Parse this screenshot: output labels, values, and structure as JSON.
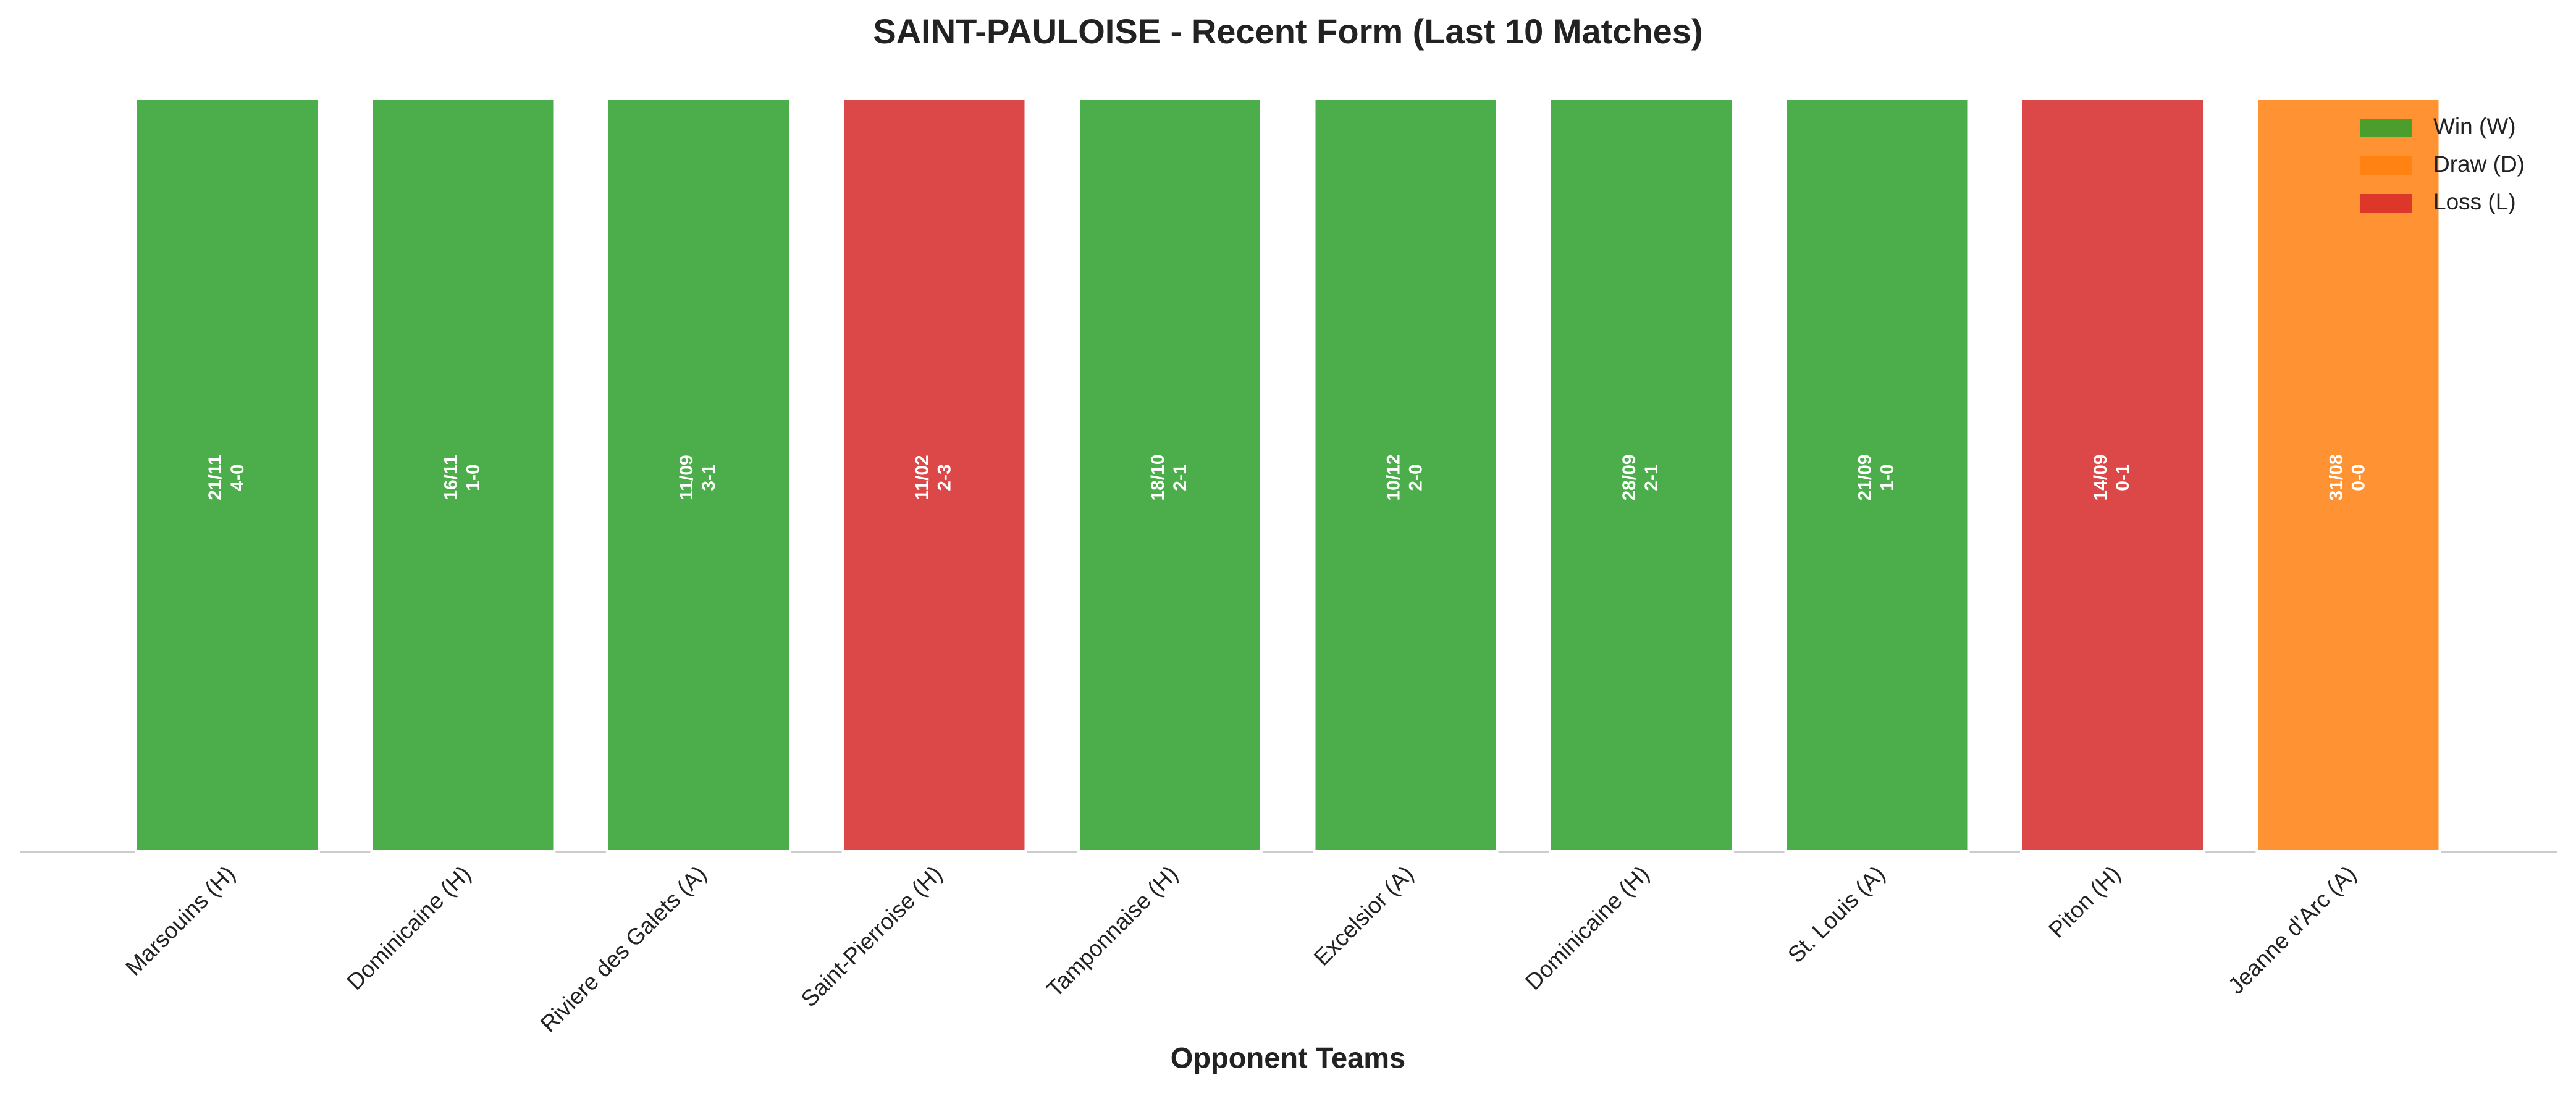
{
  "chart_data": {
    "type": "bar",
    "title": "SAINT-PAULOISE - Recent Form (Last 10 Matches)",
    "x_label": "Opponent Teams",
    "categories": [
      "Marsouins (H)",
      "Dominicaine (H)",
      "Riviere des Galets (A)",
      "Saint-Pierroise (H)",
      "Tamponnaise (H)",
      "Excelsior (A)",
      "Dominicaine (H)",
      "St. Louis (A)",
      "Piton (H)",
      "Jeanne d'Arc (A)"
    ],
    "dates": [
      "21/11",
      "16/11",
      "11/09",
      "11/02",
      "18/10",
      "10/12",
      "28/09",
      "21/09",
      "14/09",
      "31/08"
    ],
    "scores": [
      "4-0",
      "1-0",
      "3-1",
      "2-3",
      "2-1",
      "2-0",
      "2-1",
      "1-0",
      "0-1",
      "0-0"
    ],
    "series": [
      {
        "name": "Win (W)",
        "color": "#2ca02c",
        "values": [
          1,
          1,
          1,
          null,
          1,
          1,
          1,
          1,
          null,
          null
        ]
      },
      {
        "name": "Draw (D)",
        "color": "#ff7f0e",
        "values": [
          null,
          null,
          null,
          null,
          null,
          null,
          null,
          null,
          null,
          1
        ]
      },
      {
        "name": "Loss (L)",
        "color": "#d62728",
        "values": [
          null,
          null,
          null,
          1,
          null,
          null,
          null,
          null,
          1,
          null
        ]
      }
    ],
    "ylim": [
      0,
      1
    ],
    "legend": "upper right"
  }
}
